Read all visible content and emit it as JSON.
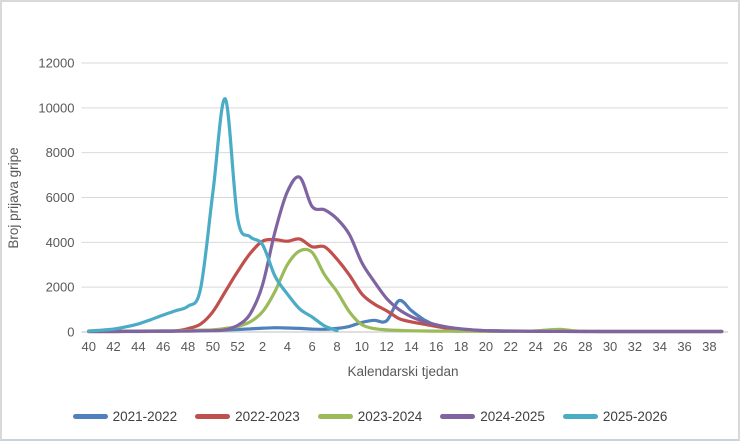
{
  "chart_data": {
    "type": "line",
    "title": "",
    "xlabel": "Kalendarski tjedan",
    "ylabel": "Broj prijava gripe",
    "ylim": [
      0,
      12000
    ],
    "ytick_step": 2000,
    "grid": true,
    "legend_position": "bottom",
    "categories": [
      40,
      41,
      42,
      43,
      44,
      45,
      46,
      47,
      48,
      49,
      50,
      51,
      52,
      1,
      2,
      3,
      4,
      5,
      6,
      7,
      8,
      9,
      10,
      11,
      12,
      13,
      14,
      15,
      16,
      17,
      18,
      19,
      20,
      21,
      22,
      23,
      24,
      25,
      26,
      27,
      28,
      29,
      30,
      31,
      32,
      33,
      34,
      35,
      36,
      37,
      38,
      39
    ],
    "xtick_labels": [
      "40",
      "42",
      "44",
      "46",
      "48",
      "50",
      "52",
      "2",
      "4",
      "6",
      "8",
      "10",
      "12",
      "14",
      "16",
      "18",
      "20",
      "22",
      "24",
      "26",
      "28",
      "30",
      "32",
      "34",
      "36",
      "38"
    ],
    "ytick_labels": [
      "0",
      "2000",
      "4000",
      "6000",
      "8000",
      "10000",
      "12000"
    ],
    "series": [
      {
        "name": "2021-2022",
        "color": "#4F81BD",
        "values": [
          30,
          30,
          35,
          35,
          40,
          45,
          50,
          55,
          60,
          70,
          80,
          90,
          110,
          140,
          170,
          190,
          180,
          160,
          130,
          120,
          160,
          250,
          430,
          520,
          500,
          1400,
          950,
          550,
          300,
          180,
          120,
          80,
          60,
          50,
          45,
          40,
          35,
          30,
          30,
          25,
          25,
          20,
          20,
          20,
          20,
          20,
          20,
          20,
          20,
          20,
          20,
          20
        ]
      },
      {
        "name": "2022-2023",
        "color": "#C0504D",
        "values": [
          20,
          20,
          20,
          25,
          25,
          30,
          35,
          50,
          150,
          350,
          900,
          1800,
          2700,
          3500,
          4050,
          4120,
          4050,
          4150,
          3800,
          3800,
          3250,
          2540,
          1700,
          1250,
          950,
          600,
          450,
          350,
          250,
          160,
          110,
          80,
          60,
          45,
          40,
          35,
          30,
          30,
          25,
          25,
          20,
          20,
          20,
          15,
          15,
          15,
          15,
          15,
          15,
          15,
          15,
          15
        ]
      },
      {
        "name": "2023-2024",
        "color": "#9BBB59",
        "values": [
          15,
          15,
          15,
          20,
          20,
          25,
          30,
          40,
          60,
          80,
          100,
          160,
          250,
          450,
          900,
          1800,
          3000,
          3620,
          3550,
          2550,
          1800,
          900,
          330,
          150,
          100,
          70,
          55,
          45,
          40,
          35,
          30,
          30,
          25,
          25,
          25,
          30,
          50,
          90,
          120,
          60,
          30,
          25,
          20,
          20,
          15,
          15,
          15,
          15,
          15,
          15,
          15,
          15
        ]
      },
      {
        "name": "2024-2025",
        "color": "#8064A2",
        "values": [
          20,
          20,
          20,
          25,
          25,
          30,
          30,
          35,
          40,
          50,
          60,
          100,
          300,
          800,
          2100,
          4450,
          6250,
          6900,
          5600,
          5450,
          5050,
          4350,
          3100,
          2250,
          1500,
          1000,
          680,
          470,
          320,
          210,
          140,
          90,
          60,
          45,
          40,
          35,
          30,
          25,
          25,
          20,
          20,
          20,
          15,
          15,
          15,
          15,
          15,
          15,
          15,
          15,
          15,
          15
        ]
      },
      {
        "name": "2025-2026",
        "color": "#4BACC6",
        "values": [
          45,
          80,
          130,
          230,
          360,
          550,
          760,
          950,
          1150,
          1900,
          6200,
          10400,
          5050,
          4250,
          3900,
          2500,
          1700,
          1030,
          670,
          270,
          60,
          null,
          null,
          null,
          null,
          null,
          null,
          null,
          null,
          null,
          null,
          null,
          null,
          null,
          null,
          null,
          null,
          null,
          null,
          null,
          null,
          null,
          null,
          null,
          null,
          null,
          null,
          null,
          null,
          null,
          null,
          null
        ]
      }
    ]
  },
  "styles": {
    "background": "#FFFFFF",
    "grid_color": "#D9D9D9",
    "axis_line_color": "#BFBFBF",
    "tick_label_color": "#595959",
    "legend_text_color": "#404040",
    "frame_border_color": "#D9D9D9"
  }
}
